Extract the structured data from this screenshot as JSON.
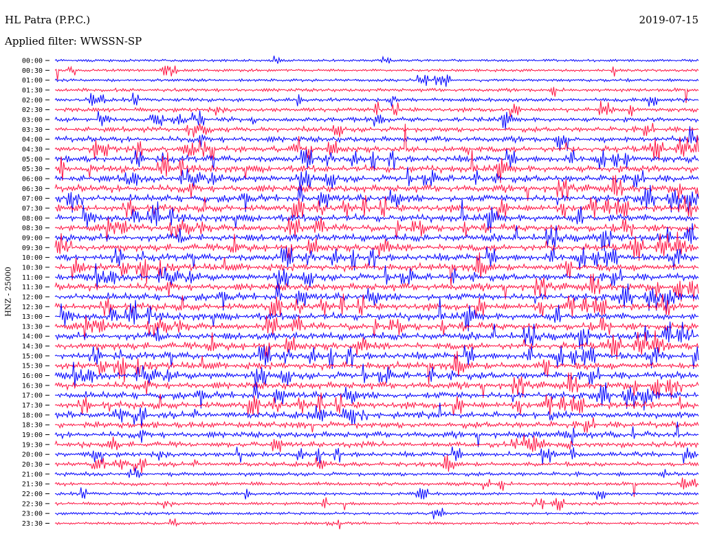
{
  "header": {
    "station": "HL Patra (P.P.C.)",
    "date": "2019-07-15",
    "filter": "Applied filter: WWSSN-SP"
  },
  "chart_data": {
    "type": "line",
    "title": "HL Patra (P.P.C.)",
    "ylabel": "HNZ - 25000",
    "trace_labels": [
      "00:00",
      "00:30",
      "01:00",
      "01:30",
      "02:00",
      "02:30",
      "03:00",
      "03:30",
      "04:00",
      "04:30",
      "05:00",
      "05:30",
      "06:00",
      "06:30",
      "07:00",
      "07:30",
      "08:00",
      "08:30",
      "09:00",
      "09:30",
      "10:00",
      "10:30",
      "11:00",
      "11:30",
      "12:00",
      "12:30",
      "13:00",
      "13:30",
      "14:00",
      "14:30",
      "15:00",
      "15:30",
      "16:00",
      "16:30",
      "17:00",
      "17:30",
      "18:00",
      "18:30",
      "19:00",
      "19:30",
      "20:00",
      "20:30",
      "21:00",
      "21:30",
      "22:00",
      "22:30",
      "23:00",
      "23:30"
    ],
    "trace_activity": [
      0.15,
      0.18,
      0.22,
      0.3,
      0.38,
      0.45,
      0.5,
      0.6,
      0.7,
      0.78,
      0.85,
      0.9,
      0.95,
      0.95,
      0.95,
      0.95,
      0.95,
      0.95,
      0.95,
      0.95,
      0.95,
      0.95,
      0.95,
      0.95,
      0.95,
      0.95,
      0.95,
      0.95,
      0.95,
      0.95,
      0.95,
      0.95,
      0.95,
      0.9,
      0.9,
      0.9,
      0.85,
      0.8,
      0.75,
      0.65,
      0.55,
      0.48,
      0.4,
      0.32,
      0.28,
      0.25,
      0.2,
      0.18
    ],
    "series_colors": [
      "#0000ff",
      "#ff1040"
    ],
    "grid": false,
    "legend": "none"
  }
}
